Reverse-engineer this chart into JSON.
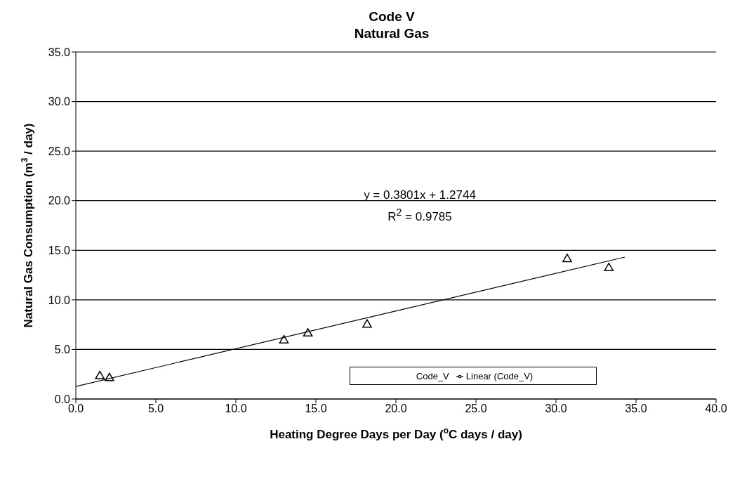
{
  "chart_data": {
    "type": "scatter",
    "title": "Code V",
    "subtitle": "Natural Gas",
    "xlabel": "Heating Degree Days per Day ($^{o}$C days / day)",
    "ylabel": "Natural Gas Consumption (m$^{3}$ / day)",
    "x": [
      1.5,
      2.1,
      13.0,
      14.5,
      18.2,
      30.7,
      33.3
    ],
    "series": [
      {
        "name": "Code_V",
        "color": "#000000",
        "values": [
          2.3,
          2.1,
          5.9,
          6.6,
          7.5,
          14.1,
          13.2
        ],
        "marker": "triangle"
      },
      {
        "name": "Linear (Code_V)",
        "type": "line",
        "color": "#000000",
        "x": [
          0,
          34.3
        ],
        "values": [
          1.27,
          14.31
        ],
        "marker": "none"
      }
    ],
    "xlim": [
      0,
      40
    ],
    "xticks": [
      {
        "value": 0,
        "label": "0.0"
      },
      {
        "value": 5,
        "label": "5.0"
      },
      {
        "value": 10,
        "label": "10.0"
      },
      {
        "value": 15,
        "label": "15.0"
      },
      {
        "value": 20,
        "label": "20.0"
      },
      {
        "value": 25,
        "label": "25.0"
      },
      {
        "value": 30,
        "label": "30.0"
      },
      {
        "value": 35,
        "label": "35.0"
      },
      {
        "value": 40,
        "label": "40.0"
      }
    ],
    "ylim": [
      0,
      35
    ],
    "yticks": [
      {
        "value": 0,
        "label": "0.0"
      },
      {
        "value": 5,
        "label": "5.0"
      },
      {
        "value": 10,
        "label": "10.0"
      },
      {
        "value": 15,
        "label": "15.0"
      },
      {
        "value": 20,
        "label": "20.0"
      },
      {
        "value": 25,
        "label": "25.0"
      },
      {
        "value": 30,
        "label": "30.0"
      },
      {
        "value": 35,
        "label": "35.0"
      }
    ],
    "annotations": [
      "y = 0.3801x + 1.2744",
      "R$^{2}$ = 0.9785"
    ],
    "grid": "y",
    "legend": "bottom"
  }
}
